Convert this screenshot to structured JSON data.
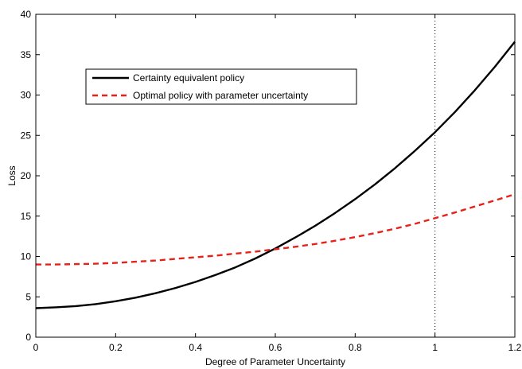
{
  "chart_data": {
    "type": "line",
    "title": "",
    "xlabel": "Degree of Parameter Uncertainty",
    "ylabel": "Loss",
    "xlim": [
      0,
      1.2
    ],
    "ylim": [
      0,
      40
    ],
    "xticks": [
      0,
      0.2,
      0.4,
      0.6,
      0.8,
      1,
      1.2
    ],
    "xtick_labels": [
      "0",
      "0.2",
      "0.4",
      "0.6",
      "0.8",
      "1",
      "1.2"
    ],
    "yticks": [
      0,
      5,
      10,
      15,
      20,
      25,
      30,
      35,
      40
    ],
    "ytick_labels": [
      "0",
      "5",
      "10",
      "15",
      "20",
      "25",
      "30",
      "35",
      "40"
    ],
    "grid": false,
    "legend_position": "upper-left",
    "reference_line": {
      "x": 1,
      "style": "dotted",
      "color": "#000000"
    },
    "series": [
      {
        "name": "Certainty equivalent policy",
        "color": "#000000",
        "style": "solid",
        "x": [
          0,
          0.05,
          0.1,
          0.15,
          0.2,
          0.25,
          0.3,
          0.35,
          0.4,
          0.45,
          0.5,
          0.55,
          0.6,
          0.65,
          0.7,
          0.75,
          0.8,
          0.85,
          0.9,
          0.95,
          1.0,
          1.05,
          1.1,
          1.15,
          1.2
        ],
        "values": [
          3.6,
          3.7,
          3.85,
          4.1,
          4.45,
          4.9,
          5.45,
          6.1,
          6.85,
          7.7,
          8.65,
          9.75,
          11.0,
          12.35,
          13.8,
          15.4,
          17.1,
          18.95,
          20.95,
          23.1,
          25.4,
          27.9,
          30.6,
          33.5,
          36.6
        ]
      },
      {
        "name": "Optimal policy with parameter uncertainty",
        "color": "#e8211a",
        "style": "dashed",
        "x": [
          0,
          0.05,
          0.1,
          0.15,
          0.2,
          0.25,
          0.3,
          0.35,
          0.4,
          0.45,
          0.5,
          0.55,
          0.6,
          0.65,
          0.7,
          0.75,
          0.8,
          0.85,
          0.9,
          0.95,
          1.0,
          1.05,
          1.1,
          1.15,
          1.2
        ],
        "values": [
          9.0,
          9.0,
          9.05,
          9.1,
          9.2,
          9.35,
          9.5,
          9.7,
          9.9,
          10.1,
          10.35,
          10.6,
          10.9,
          11.2,
          11.55,
          11.95,
          12.4,
          12.9,
          13.45,
          14.05,
          14.75,
          15.45,
          16.2,
          16.95,
          17.7
        ]
      }
    ]
  }
}
